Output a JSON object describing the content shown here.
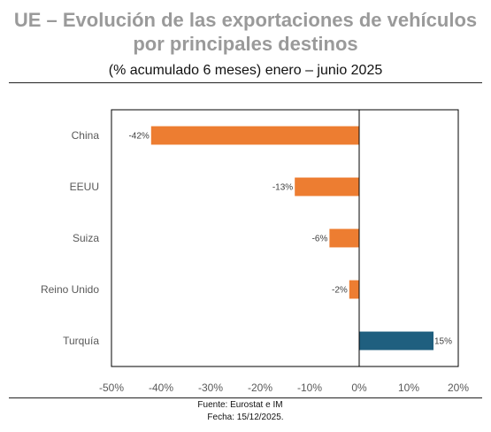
{
  "title_line1": "UE – Evolución de las exportaciones de vehículos",
  "title_line2": "por principales destinos",
  "subtitle": "(% acumulado 6 meses) enero – junio 2025",
  "footer_source": "Fuente: Eurostat e IM",
  "footer_date": "Fecha: 15/12/2025.",
  "chart_data": {
    "type": "bar",
    "orientation": "horizontal",
    "categories": [
      "China",
      "EEUU",
      "Suiza",
      "Reino Unido",
      "Turquía"
    ],
    "values": [
      -42,
      -13,
      -6,
      -2,
      15
    ],
    "data_labels": [
      "-42%",
      "-13%",
      "-6%",
      "-2%",
      "15%"
    ],
    "xlim": [
      -50,
      20
    ],
    "x_ticks": [
      -50,
      -40,
      -30,
      -20,
      -10,
      0,
      10,
      20
    ],
    "x_tick_labels": [
      "-50%",
      "-40%",
      "-30%",
      "-20%",
      "-10%",
      "0%",
      "10%",
      "20%"
    ],
    "grid": false,
    "colors": {
      "negative": "#ed7d31",
      "positive": "#1f5f7f"
    }
  }
}
